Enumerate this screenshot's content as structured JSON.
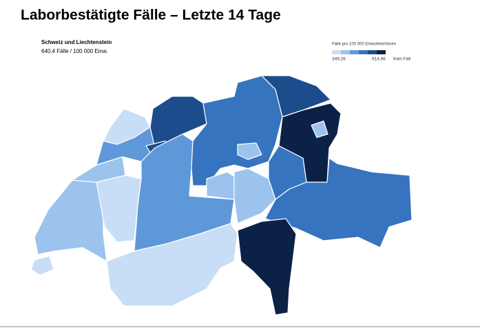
{
  "title": "Laborbestätigte Fälle – Letzte 14 Tage",
  "region": {
    "name": "Schweiz und Liechtenstein",
    "rate": "640,4 Fälle / 100 000 Einw."
  },
  "legend": {
    "title": "Fälle pro 100 000 Einwohner/innen",
    "min_label": "349,26",
    "max_label": "914,96",
    "none_label": "Kein Fall"
  }
}
